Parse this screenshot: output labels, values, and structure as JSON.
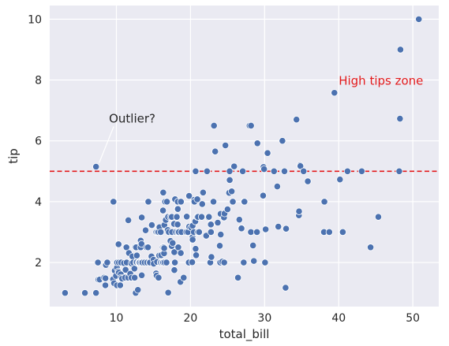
{
  "chart_data": {
    "type": "scatter",
    "xlabel": "total_bill",
    "ylabel": "tip",
    "xlim": [
      1.0,
      53.5
    ],
    "ylim": [
      0.55,
      10.45
    ],
    "x_ticks": [
      10,
      20,
      30,
      40,
      50
    ],
    "y_ticks": [
      2,
      4,
      6,
      8,
      10
    ],
    "grid": true,
    "style": {
      "background": "#eaeaf2",
      "grid_color": "#ffffff",
      "point_color": "#4c72b0",
      "hline_color": "#e31a1c",
      "zone_text_color": "#e31a1c",
      "outlier_text_color": "#262626",
      "arrow_color": "#ffffff"
    },
    "hline": {
      "y": 5
    },
    "annotations": {
      "outlier": {
        "text": "Outlier?",
        "point": [
          7.25,
          5.15
        ],
        "text_anchor": [
          9.0,
          6.6
        ]
      },
      "zone": {
        "text": "High tips zone",
        "anchor": [
          40.0,
          8.0
        ]
      }
    },
    "points": [
      [
        3.07,
        1.0
      ],
      [
        5.75,
        1.0
      ],
      [
        7.25,
        1.0
      ],
      [
        7.25,
        5.15
      ],
      [
        7.51,
        2.0
      ],
      [
        7.56,
        1.44
      ],
      [
        7.74,
        1.44
      ],
      [
        8.35,
        1.5
      ],
      [
        8.51,
        1.25
      ],
      [
        8.52,
        1.48
      ],
      [
        8.58,
        1.92
      ],
      [
        8.77,
        2.0
      ],
      [
        9.55,
        1.45
      ],
      [
        9.6,
        4.0
      ],
      [
        9.68,
        1.32
      ],
      [
        9.78,
        1.73
      ],
      [
        9.94,
        1.56
      ],
      [
        10.07,
        1.25
      ],
      [
        10.07,
        1.83
      ],
      [
        10.09,
        2.0
      ],
      [
        10.27,
        1.71
      ],
      [
        10.29,
        2.6
      ],
      [
        10.33,
        1.67
      ],
      [
        10.34,
        2.0
      ],
      [
        10.51,
        1.25
      ],
      [
        10.59,
        1.61
      ],
      [
        10.63,
        2.0
      ],
      [
        10.65,
        1.5
      ],
      [
        10.77,
        1.47
      ],
      [
        11.02,
        1.98
      ],
      [
        11.17,
        1.5
      ],
      [
        11.24,
        1.76
      ],
      [
        11.35,
        2.5
      ],
      [
        11.38,
        2.0
      ],
      [
        11.59,
        1.5
      ],
      [
        11.61,
        3.39
      ],
      [
        11.69,
        2.31
      ],
      [
        11.87,
        1.63
      ],
      [
        12.02,
        1.97
      ],
      [
        12.03,
        1.5
      ],
      [
        12.16,
        2.2
      ],
      [
        12.26,
        2.0
      ],
      [
        12.43,
        1.8
      ],
      [
        12.46,
        1.5
      ],
      [
        12.48,
        2.52
      ],
      [
        12.54,
        2.5
      ],
      [
        12.6,
        1.0
      ],
      [
        12.66,
        2.5
      ],
      [
        12.69,
        2.0
      ],
      [
        12.74,
        2.01
      ],
      [
        12.76,
        2.23
      ],
      [
        12.9,
        1.1
      ],
      [
        13.0,
        2.0
      ],
      [
        13.03,
        2.0
      ],
      [
        13.13,
        2.0
      ],
      [
        13.16,
        2.0
      ],
      [
        13.27,
        2.5
      ],
      [
        13.28,
        2.72
      ],
      [
        13.37,
        2.0
      ],
      [
        13.39,
        2.61
      ],
      [
        13.42,
        3.48
      ],
      [
        13.42,
        1.58
      ],
      [
        13.51,
        2.0
      ],
      [
        13.81,
        2.0
      ],
      [
        13.94,
        3.06
      ],
      [
        14.07,
        2.5
      ],
      [
        14.15,
        2.0
      ],
      [
        14.26,
        2.5
      ],
      [
        14.31,
        4.0
      ],
      [
        14.48,
        2.0
      ],
      [
        14.52,
        2.0
      ],
      [
        14.73,
        2.2
      ],
      [
        14.78,
        3.23
      ],
      [
        15.01,
        2.09
      ],
      [
        15.04,
        1.96
      ],
      [
        15.36,
        1.64
      ],
      [
        15.38,
        3.0
      ],
      [
        15.42,
        1.57
      ],
      [
        15.48,
        2.02
      ],
      [
        15.53,
        3.0
      ],
      [
        15.69,
        3.0
      ],
      [
        15.69,
        1.5
      ],
      [
        15.77,
        2.23
      ],
      [
        15.81,
        3.16
      ],
      [
        15.95,
        2.0
      ],
      [
        15.98,
        3.0
      ],
      [
        16.0,
        2.0
      ],
      [
        16.04,
        2.24
      ],
      [
        16.21,
        2.0
      ],
      [
        16.27,
        2.5
      ],
      [
        16.29,
        3.71
      ],
      [
        16.31,
        2.0
      ],
      [
        16.32,
        4.3
      ],
      [
        16.4,
        2.5
      ],
      [
        16.43,
        2.3
      ],
      [
        16.45,
        2.47
      ],
      [
        16.47,
        3.23
      ],
      [
        16.49,
        2.0
      ],
      [
        16.58,
        4.0
      ],
      [
        16.66,
        3.4
      ],
      [
        16.76,
        2.0
      ],
      [
        16.82,
        4.0
      ],
      [
        16.93,
        3.07
      ],
      [
        16.97,
        3.5
      ],
      [
        16.99,
        1.01
      ],
      [
        17.07,
        3.0
      ],
      [
        17.29,
        2.71
      ],
      [
        17.31,
        3.5
      ],
      [
        17.46,
        2.54
      ],
      [
        17.47,
        3.5
      ],
      [
        17.51,
        3.0
      ],
      [
        17.59,
        2.64
      ],
      [
        17.78,
        3.27
      ],
      [
        17.81,
        2.34
      ],
      [
        17.82,
        1.75
      ],
      [
        17.89,
        2.0
      ],
      [
        17.92,
        4.08
      ],
      [
        18.04,
        3.0
      ],
      [
        18.15,
        3.5
      ],
      [
        18.24,
        3.76
      ],
      [
        18.26,
        3.25
      ],
      [
        18.28,
        4.0
      ],
      [
        18.29,
        3.76
      ],
      [
        18.29,
        3.0
      ],
      [
        18.35,
        2.5
      ],
      [
        18.43,
        3.0
      ],
      [
        18.64,
        1.36
      ],
      [
        18.69,
        2.31
      ],
      [
        18.71,
        4.0
      ],
      [
        18.78,
        3.0
      ],
      [
        19.08,
        1.5
      ],
      [
        19.44,
        3.0
      ],
      [
        19.49,
        3.51
      ],
      [
        19.65,
        3.0
      ],
      [
        19.77,
        2.0
      ],
      [
        19.81,
        4.19
      ],
      [
        19.82,
        3.18
      ],
      [
        20.08,
        3.15
      ],
      [
        20.23,
        2.01
      ],
      [
        20.27,
        2.83
      ],
      [
        20.29,
        2.75
      ],
      [
        20.29,
        3.21
      ],
      [
        20.45,
        3.0
      ],
      [
        20.49,
        4.06
      ],
      [
        20.53,
        4.0
      ],
      [
        20.65,
        3.35
      ],
      [
        20.69,
        2.45
      ],
      [
        20.69,
        5.0
      ],
      [
        20.76,
        2.24
      ],
      [
        20.9,
        3.5
      ],
      [
        20.92,
        4.08
      ],
      [
        21.01,
        3.5
      ],
      [
        21.01,
        3.0
      ],
      [
        21.16,
        3.0
      ],
      [
        21.5,
        3.5
      ],
      [
        21.58,
        3.92
      ],
      [
        21.7,
        4.3
      ],
      [
        22.12,
        2.88
      ],
      [
        22.23,
        5.0
      ],
      [
        22.42,
        3.48
      ],
      [
        22.49,
        3.5
      ],
      [
        22.67,
        2.0
      ],
      [
        22.75,
        3.25
      ],
      [
        22.76,
        3.0
      ],
      [
        22.82,
        2.18
      ],
      [
        23.1,
        4.0
      ],
      [
        23.17,
        6.5
      ],
      [
        23.33,
        5.65
      ],
      [
        23.68,
        3.31
      ],
      [
        23.95,
        2.55
      ],
      [
        24.01,
        2.0
      ],
      [
        24.06,
        3.6
      ],
      [
        24.08,
        2.92
      ],
      [
        24.27,
        2.03
      ],
      [
        24.52,
        3.48
      ],
      [
        24.55,
        2.0
      ],
      [
        24.59,
        3.61
      ],
      [
        24.71,
        5.85
      ],
      [
        25.0,
        3.75
      ],
      [
        25.21,
        4.29
      ],
      [
        25.28,
        5.0
      ],
      [
        25.29,
        4.71
      ],
      [
        25.56,
        4.34
      ],
      [
        25.71,
        4.0
      ],
      [
        25.89,
        5.16
      ],
      [
        26.41,
        1.5
      ],
      [
        26.59,
        3.41
      ],
      [
        26.86,
        3.14
      ],
      [
        26.88,
        3.12
      ],
      [
        27.05,
        5.0
      ],
      [
        27.18,
        2.0
      ],
      [
        27.2,
        4.0
      ],
      [
        27.28,
        4.0
      ],
      [
        27.97,
        6.5
      ],
      [
        28.15,
        3.0
      ],
      [
        28.17,
        6.5
      ],
      [
        28.44,
        2.56
      ],
      [
        28.55,
        2.05
      ],
      [
        28.97,
        3.0
      ],
      [
        29.03,
        5.92
      ],
      [
        29.8,
        4.2
      ],
      [
        29.85,
        5.14
      ],
      [
        29.93,
        5.07
      ],
      [
        30.06,
        2.0
      ],
      [
        30.14,
        3.09
      ],
      [
        30.4,
        5.6
      ],
      [
        31.27,
        5.0
      ],
      [
        31.71,
        4.5
      ],
      [
        31.85,
        3.18
      ],
      [
        32.4,
        6.0
      ],
      [
        32.68,
        5.0
      ],
      [
        32.83,
        1.17
      ],
      [
        32.9,
        3.11
      ],
      [
        34.3,
        6.7
      ],
      [
        34.63,
        3.55
      ],
      [
        34.65,
        3.68
      ],
      [
        34.81,
        5.2
      ],
      [
        34.83,
        5.17
      ],
      [
        35.26,
        5.0
      ],
      [
        35.83,
        4.67
      ],
      [
        38.01,
        3.0
      ],
      [
        38.07,
        4.0
      ],
      [
        38.73,
        3.0
      ],
      [
        39.42,
        7.58
      ],
      [
        40.17,
        4.73
      ],
      [
        40.55,
        3.0
      ],
      [
        41.19,
        5.0
      ],
      [
        43.11,
        5.0
      ],
      [
        44.3,
        2.5
      ],
      [
        45.35,
        3.5
      ],
      [
        48.17,
        5.0
      ],
      [
        48.27,
        6.73
      ],
      [
        48.33,
        9.0
      ],
      [
        50.81,
        10.0
      ]
    ]
  }
}
